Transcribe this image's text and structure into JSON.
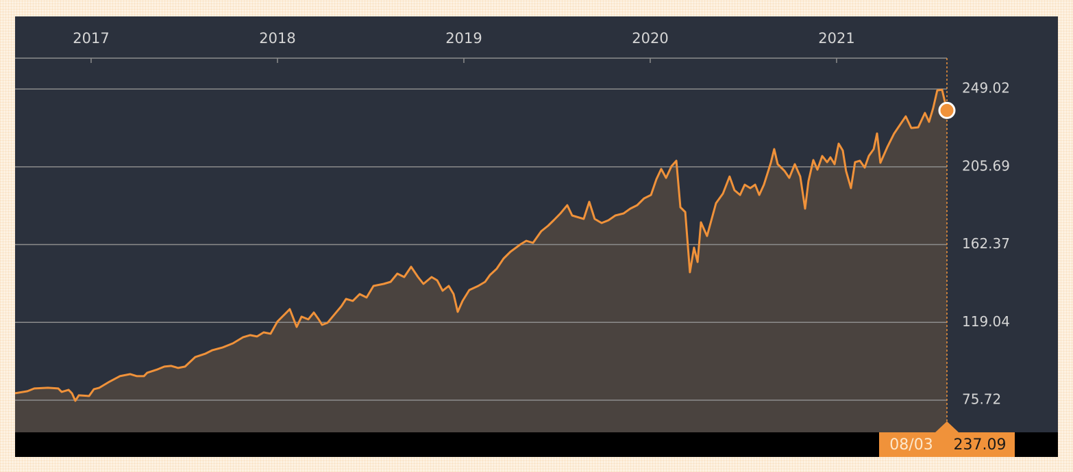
{
  "chart_data": {
    "type": "line",
    "x": [
      2016.592,
      2016.658,
      2016.695,
      2016.768,
      2016.824,
      2016.842,
      2016.879,
      2016.897,
      2016.915,
      2016.934,
      2016.989,
      2017.015,
      2017.044,
      2017.099,
      2017.154,
      2017.21,
      2017.246,
      2017.283,
      2017.301,
      2017.357,
      2017.393,
      2017.43,
      2017.467,
      2017.504,
      2017.559,
      2017.614,
      2017.651,
      2017.706,
      2017.761,
      2017.816,
      2017.853,
      2017.89,
      2017.926,
      2017.963,
      2018.0,
      2018.037,
      2018.066,
      2018.103,
      2018.129,
      2018.165,
      2018.195,
      2018.221,
      2018.239,
      2018.268,
      2018.305,
      2018.342,
      2018.368,
      2018.404,
      2018.441,
      2018.478,
      2018.515,
      2018.57,
      2018.607,
      2018.643,
      2018.68,
      2018.717,
      2018.754,
      2018.783,
      2018.827,
      2018.857,
      2018.886,
      2018.919,
      2018.945,
      2018.967,
      2018.993,
      2019.029,
      2019.077,
      2019.114,
      2019.14,
      2019.176,
      2019.213,
      2019.25,
      2019.305,
      2019.335,
      2019.371,
      2019.415,
      2019.452,
      2019.482,
      2019.518,
      2019.555,
      2019.581,
      2019.618,
      2019.643,
      2019.673,
      2019.702,
      2019.739,
      2019.776,
      2019.813,
      2019.857,
      2019.893,
      2019.93,
      2019.967,
      2020.004,
      2020.033,
      2020.059,
      2020.085,
      2020.114,
      2020.14,
      2020.162,
      2020.188,
      2020.213,
      2020.235,
      2020.254,
      2020.272,
      2020.305,
      2020.353,
      2020.39,
      2020.426,
      2020.452,
      2020.482,
      2020.507,
      2020.537,
      2020.563,
      2020.585,
      2020.61,
      2020.647,
      2020.665,
      2020.684,
      2020.721,
      2020.746,
      2020.776,
      2020.805,
      2020.831,
      2020.849,
      2020.875,
      2020.897,
      2020.923,
      2020.949,
      2020.967,
      2020.989,
      2021.011,
      2021.033,
      2021.051,
      2021.077,
      2021.099,
      2021.125,
      2021.151,
      2021.173,
      2021.199,
      2021.217,
      2021.235,
      2021.272,
      2021.309,
      2021.346,
      2021.371,
      2021.401,
      2021.438,
      2021.474,
      2021.496,
      2021.518,
      2021.54,
      2021.566,
      2021.592
    ],
    "series": [
      {
        "color": "#f0923a",
        "values": [
          79.56,
          80.71,
          82.23,
          82.61,
          82.23,
          80.33,
          81.47,
          79.56,
          75.38,
          78.42,
          78.04,
          81.85,
          82.61,
          86.04,
          89.08,
          90.23,
          89.08,
          89.08,
          90.99,
          92.89,
          94.42,
          94.8,
          93.65,
          94.42,
          99.75,
          101.65,
          103.55,
          105.08,
          107.36,
          110.79,
          111.93,
          111.17,
          113.46,
          112.69,
          119.55,
          123.36,
          126.4,
          116.5,
          122.21,
          120.69,
          124.5,
          120.69,
          117.64,
          118.79,
          123.36,
          127.93,
          132.11,
          130.97,
          134.78,
          132.88,
          139.35,
          140.49,
          141.63,
          146.2,
          144.3,
          150.01,
          144.3,
          140.49,
          144.3,
          142.4,
          136.68,
          139.35,
          134.78,
          124.88,
          130.97,
          137.06,
          139.35,
          141.63,
          145.44,
          148.87,
          154.58,
          158.39,
          162.58,
          164.48,
          163.34,
          169.81,
          172.86,
          175.91,
          179.71,
          184.28,
          178.57,
          177.43,
          176.67,
          186.19,
          176.67,
          174.38,
          175.91,
          178.57,
          179.71,
          182.38,
          184.28,
          188.09,
          190.0,
          198.75,
          204.47,
          199.52,
          205.99,
          209.04,
          183.14,
          180.48,
          146.97,
          160.67,
          152.68,
          174.76,
          167.15,
          185.43,
          190.76,
          200.28,
          192.66,
          190.0,
          195.71,
          193.8,
          195.71,
          190.0,
          195.71,
          207.89,
          215.51,
          207.13,
          203.32,
          199.52,
          207.13,
          200.28,
          182.38,
          197.61,
          209.42,
          204.09,
          211.7,
          208.27,
          210.94,
          207.13,
          218.56,
          214.75,
          203.32,
          193.8,
          208.27,
          209.04,
          205.23,
          211.7,
          215.51,
          224.27,
          207.89,
          216.65,
          224.27,
          229.98,
          233.79,
          227.31,
          227.7,
          235.69,
          230.74,
          238.36,
          248.26,
          248.64,
          237.09
        ]
      }
    ],
    "xlim": [
      2016.592,
      2021.592
    ],
    "xticks": [
      2017,
      2018,
      2019,
      2020,
      2021
    ],
    "ylim": [
      57.8,
      266.2
    ],
    "yticks": [
      75.72,
      119.04,
      162.37,
      205.69,
      249.02
    ],
    "grid": true,
    "last_label": {
      "date": "08/03"
    }
  }
}
